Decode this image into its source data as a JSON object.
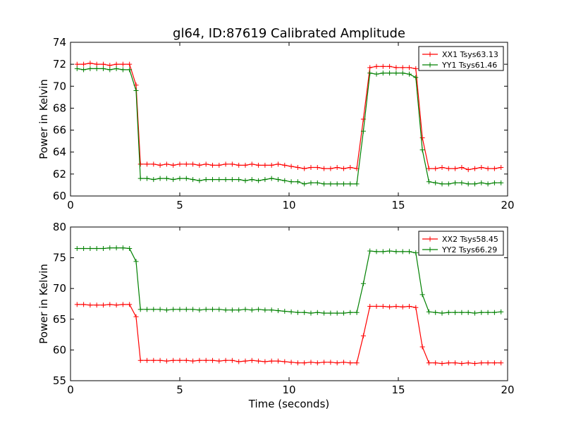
{
  "figure": {
    "title": "gl64, ID:87619 Calibrated Amplitude",
    "xlabel": "Time (seconds)"
  },
  "chart_data": [
    {
      "type": "line",
      "title": "gl64, ID:87619 Calibrated Amplitude",
      "xlabel": "",
      "ylabel": "Power in Kelvin",
      "xlim": [
        0,
        20
      ],
      "ylim": [
        60,
        74
      ],
      "xticks": [
        0,
        5,
        10,
        15,
        20
      ],
      "yticks": [
        60,
        62,
        64,
        66,
        68,
        70,
        72,
        74
      ],
      "grid": false,
      "legend": "top-right",
      "x": [
        0.3,
        0.6,
        0.9,
        1.2,
        1.5,
        1.8,
        2.1,
        2.4,
        2.7,
        3.0,
        3.2,
        3.5,
        3.8,
        4.1,
        4.4,
        4.7,
        5.0,
        5.3,
        5.6,
        5.9,
        6.2,
        6.5,
        6.8,
        7.1,
        7.4,
        7.7,
        8.0,
        8.3,
        8.6,
        8.9,
        9.2,
        9.5,
        9.8,
        10.1,
        10.4,
        10.7,
        11.0,
        11.3,
        11.6,
        11.9,
        12.2,
        12.5,
        12.8,
        13.1,
        13.4,
        13.7,
        14.0,
        14.3,
        14.6,
        14.9,
        15.2,
        15.5,
        15.8,
        16.1,
        16.4,
        16.7,
        17.0,
        17.3,
        17.6,
        17.9,
        18.2,
        18.5,
        18.8,
        19.1,
        19.4,
        19.7
      ],
      "series": [
        {
          "name": "XX1 Tsys63.13",
          "color": "#ff0000",
          "values": [
            72.0,
            72.0,
            72.1,
            72.0,
            72.0,
            71.9,
            72.0,
            72.0,
            72.0,
            70.1,
            62.9,
            62.9,
            62.9,
            62.8,
            62.9,
            62.8,
            62.9,
            62.9,
            62.9,
            62.8,
            62.9,
            62.8,
            62.8,
            62.9,
            62.9,
            62.8,
            62.8,
            62.9,
            62.8,
            62.8,
            62.8,
            62.9,
            62.8,
            62.7,
            62.6,
            62.5,
            62.6,
            62.6,
            62.5,
            62.5,
            62.6,
            62.5,
            62.6,
            62.5,
            67.0,
            71.7,
            71.8,
            71.8,
            71.8,
            71.7,
            71.7,
            71.7,
            71.6,
            65.3,
            62.5,
            62.5,
            62.6,
            62.5,
            62.5,
            62.6,
            62.4,
            62.5,
            62.6,
            62.5,
            62.5,
            62.6
          ]
        },
        {
          "name": "YY1 Tsys61.46",
          "color": "#008000",
          "values": [
            71.6,
            71.5,
            71.6,
            71.6,
            71.6,
            71.5,
            71.6,
            71.5,
            71.5,
            69.6,
            61.6,
            61.6,
            61.5,
            61.6,
            61.6,
            61.5,
            61.6,
            61.6,
            61.5,
            61.4,
            61.5,
            61.5,
            61.5,
            61.5,
            61.5,
            61.5,
            61.4,
            61.5,
            61.4,
            61.5,
            61.6,
            61.5,
            61.4,
            61.3,
            61.3,
            61.1,
            61.2,
            61.2,
            61.1,
            61.1,
            61.1,
            61.1,
            61.1,
            61.1,
            65.9,
            71.2,
            71.1,
            71.2,
            71.2,
            71.2,
            71.2,
            71.1,
            70.8,
            64.2,
            61.3,
            61.2,
            61.1,
            61.1,
            61.2,
            61.2,
            61.1,
            61.1,
            61.2,
            61.1,
            61.2,
            61.2
          ]
        }
      ]
    },
    {
      "type": "line",
      "title": "",
      "xlabel": "Time (seconds)",
      "ylabel": "Power in Kelvin",
      "xlim": [
        0,
        20
      ],
      "ylim": [
        55,
        80
      ],
      "xticks": [
        0,
        5,
        10,
        15,
        20
      ],
      "yticks": [
        55,
        60,
        65,
        70,
        75,
        80
      ],
      "grid": false,
      "legend": "top-right",
      "x": [
        0.3,
        0.6,
        0.9,
        1.2,
        1.5,
        1.8,
        2.1,
        2.4,
        2.7,
        3.0,
        3.2,
        3.5,
        3.8,
        4.1,
        4.4,
        4.7,
        5.0,
        5.3,
        5.6,
        5.9,
        6.2,
        6.5,
        6.8,
        7.1,
        7.4,
        7.7,
        8.0,
        8.3,
        8.6,
        8.9,
        9.2,
        9.5,
        9.8,
        10.1,
        10.4,
        10.7,
        11.0,
        11.3,
        11.6,
        11.9,
        12.2,
        12.5,
        12.8,
        13.1,
        13.4,
        13.7,
        14.0,
        14.3,
        14.6,
        14.9,
        15.2,
        15.5,
        15.8,
        16.1,
        16.4,
        16.7,
        17.0,
        17.3,
        17.6,
        17.9,
        18.2,
        18.5,
        18.8,
        19.1,
        19.4,
        19.7
      ],
      "series": [
        {
          "name": "XX2 Tsys58.45",
          "color": "#ff0000",
          "values": [
            67.4,
            67.4,
            67.3,
            67.3,
            67.3,
            67.4,
            67.3,
            67.4,
            67.4,
            65.4,
            58.3,
            58.3,
            58.3,
            58.3,
            58.2,
            58.3,
            58.3,
            58.3,
            58.2,
            58.3,
            58.3,
            58.3,
            58.2,
            58.3,
            58.3,
            58.1,
            58.2,
            58.3,
            58.2,
            58.1,
            58.2,
            58.2,
            58.1,
            58.0,
            57.9,
            57.9,
            58.0,
            57.9,
            58.0,
            58.0,
            57.9,
            58.0,
            57.9,
            57.9,
            62.3,
            67.1,
            67.1,
            67.1,
            67.0,
            67.1,
            67.0,
            67.1,
            66.9,
            60.5,
            57.9,
            57.9,
            57.8,
            57.9,
            57.9,
            57.8,
            57.9,
            57.8,
            57.9,
            57.9,
            57.9,
            57.9
          ]
        },
        {
          "name": "YY2 Tsys66.29",
          "color": "#008000",
          "values": [
            76.5,
            76.5,
            76.5,
            76.5,
            76.5,
            76.6,
            76.6,
            76.6,
            76.5,
            74.4,
            66.6,
            66.6,
            66.6,
            66.6,
            66.5,
            66.6,
            66.6,
            66.6,
            66.6,
            66.5,
            66.6,
            66.6,
            66.6,
            66.5,
            66.5,
            66.5,
            66.6,
            66.5,
            66.6,
            66.5,
            66.5,
            66.4,
            66.3,
            66.2,
            66.1,
            66.1,
            66.0,
            66.1,
            66.0,
            66.0,
            66.0,
            66.0,
            66.1,
            66.1,
            70.8,
            76.1,
            76.0,
            76.0,
            76.1,
            76.0,
            76.0,
            76.0,
            75.8,
            69.0,
            66.2,
            66.1,
            66.0,
            66.1,
            66.1,
            66.1,
            66.1,
            66.0,
            66.1,
            66.1,
            66.1,
            66.2
          ]
        }
      ]
    }
  ]
}
